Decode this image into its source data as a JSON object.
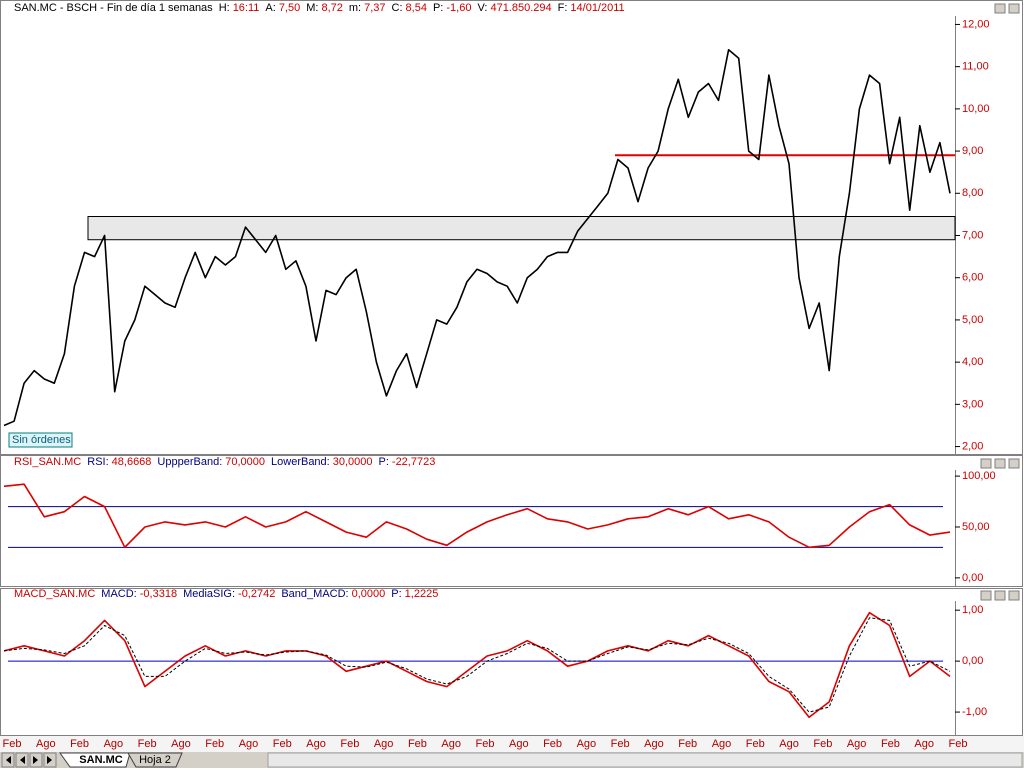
{
  "chart_data": [
    {
      "type": "line",
      "title": "SAN.MC - BSCH - Fin de día 1 semanas",
      "title_color": "#000000",
      "stats": [
        {
          "label": "H:",
          "value": "16:11"
        },
        {
          "label": "A:",
          "value": "7,50"
        },
        {
          "label": "M:",
          "value": "8,72"
        },
        {
          "label": "m:",
          "value": "7,37"
        },
        {
          "label": "C:",
          "value": "8,54"
        },
        {
          "label": "P:",
          "value": "-1,60"
        },
        {
          "label": "V:",
          "value": "471.850.294"
        },
        {
          "label": "F:",
          "value": "14/01/2011"
        }
      ],
      "color": "#000000",
      "values": [
        2.5,
        2.6,
        3.5,
        3.8,
        3.6,
        3.5,
        4.2,
        5.8,
        6.6,
        6.5,
        7.0,
        3.3,
        4.5,
        5.0,
        5.8,
        5.6,
        5.4,
        5.3,
        6.0,
        6.6,
        6.0,
        6.5,
        6.3,
        6.5,
        7.2,
        6.9,
        6.6,
        7.0,
        6.2,
        6.4,
        5.8,
        4.5,
        5.7,
        5.6,
        6.0,
        6.2,
        5.2,
        4.0,
        3.2,
        3.8,
        4.2,
        3.4,
        4.2,
        5.0,
        4.9,
        5.3,
        5.9,
        6.2,
        6.1,
        5.9,
        5.8,
        5.4,
        6.0,
        6.2,
        6.5,
        6.6,
        6.6,
        7.1,
        7.4,
        7.7,
        8.0,
        8.8,
        8.6,
        7.8,
        8.6,
        9.0,
        10.0,
        10.7,
        9.8,
        10.4,
        10.6,
        10.2,
        11.4,
        11.2,
        9.0,
        8.8,
        10.8,
        9.6,
        8.7,
        6.0,
        4.8,
        5.4,
        3.8,
        6.5,
        8.0,
        10.0,
        10.8,
        10.6,
        8.7,
        9.8,
        7.6,
        9.6,
        8.5,
        9.2,
        8.0
      ],
      "ylim": [
        1.8,
        12.2
      ],
      "yticks": [
        {
          "value": 2,
          "label": "2,00"
        },
        {
          "value": 3,
          "label": "3,00"
        },
        {
          "value": 4,
          "label": "4,00"
        },
        {
          "value": 5,
          "label": "5,00"
        },
        {
          "value": 6,
          "label": "6,00"
        },
        {
          "value": 7,
          "label": "7,00"
        },
        {
          "value": 8,
          "label": "8,00"
        },
        {
          "value": 9,
          "label": "9,00"
        },
        {
          "value": 10,
          "label": "10,00"
        },
        {
          "value": 11,
          "label": "11,00"
        },
        {
          "value": 12,
          "label": "12,00"
        }
      ],
      "hlines": [
        {
          "value": 8.9,
          "color": "#e00000"
        }
      ],
      "bands": [
        {
          "from": 6.9,
          "to": 7.45,
          "color": "#e8e8e8"
        }
      ],
      "annotation": "Sin órdenes"
    },
    {
      "type": "line",
      "title": "RSI_SAN.MC",
      "title_color": "#cc0000",
      "stats": [
        {
          "label": "RSI:",
          "value": "48,6668"
        },
        {
          "label": "UppperBand:",
          "value": "70,0000"
        },
        {
          "label": "LowerBand:",
          "value": "30,0000"
        },
        {
          "label": "P:",
          "value": "-22,7723"
        }
      ],
      "color": "#dd0000",
      "values": [
        90,
        92,
        60,
        65,
        80,
        70,
        30,
        50,
        55,
        52,
        55,
        50,
        60,
        50,
        55,
        65,
        55,
        45,
        40,
        55,
        48,
        38,
        32,
        45,
        55,
        62,
        68,
        58,
        55,
        48,
        52,
        58,
        60,
        68,
        62,
        70,
        58,
        62,
        55,
        40,
        30,
        32,
        50,
        65,
        72,
        52,
        42,
        45
      ],
      "ylim": [
        -8,
        106
      ],
      "yticks": [
        {
          "value": 0,
          "label": "0,00"
        },
        {
          "value": 50,
          "label": "50,00"
        },
        {
          "value": 100,
          "label": "100,00"
        }
      ],
      "hlines": [
        {
          "value": 70,
          "color": "#000080"
        },
        {
          "value": 30,
          "color": "#000080"
        }
      ]
    },
    {
      "type": "line",
      "title": "MACD_SAN.MC",
      "title_color": "#cc0000",
      "stats": [
        {
          "label": "MACD:",
          "value": "-0,3318"
        },
        {
          "label": "MediaSIG:",
          "value": "-0,2742"
        },
        {
          "label": "Band_MACD:",
          "value": "0,0000"
        },
        {
          "label": "P:",
          "value": "1,2225"
        }
      ],
      "series": [
        {
          "color": "#dd0000",
          "dashed": false,
          "values": [
            0.2,
            0.3,
            0.2,
            0.1,
            0.4,
            0.8,
            0.4,
            -0.5,
            -0.2,
            0.1,
            0.3,
            0.1,
            0.2,
            0.1,
            0.2,
            0.2,
            0.1,
            -0.2,
            -0.1,
            0.0,
            -0.2,
            -0.4,
            -0.5,
            -0.2,
            0.1,
            0.2,
            0.4,
            0.2,
            -0.1,
            0.0,
            0.2,
            0.3,
            0.2,
            0.4,
            0.3,
            0.5,
            0.3,
            0.1,
            -0.4,
            -0.6,
            -1.1,
            -0.8,
            0.3,
            0.95,
            0.7,
            -0.3,
            0.0,
            -0.3
          ]
        },
        {
          "color": "#000000",
          "dashed": true,
          "values": [
            0.2,
            0.25,
            0.22,
            0.15,
            0.3,
            0.7,
            0.5,
            -0.3,
            -0.3,
            0.0,
            0.25,
            0.15,
            0.18,
            0.12,
            0.18,
            0.2,
            0.12,
            -0.1,
            -0.12,
            -0.02,
            -0.15,
            -0.35,
            -0.45,
            -0.3,
            0.0,
            0.15,
            0.35,
            0.25,
            0.0,
            0.0,
            0.15,
            0.28,
            0.22,
            0.35,
            0.32,
            0.45,
            0.35,
            0.15,
            -0.3,
            -0.55,
            -1.0,
            -0.9,
            0.1,
            0.85,
            0.8,
            -0.1,
            0.0,
            -0.2
          ]
        }
      ],
      "ylim": [
        -1.45,
        1.18
      ],
      "yticks": [
        {
          "value": -1,
          "label": "-1,00"
        },
        {
          "value": 0,
          "label": "0,00"
        },
        {
          "value": 1,
          "label": "1,00"
        }
      ],
      "hlines": [
        {
          "value": 0,
          "color": "#0000cc"
        }
      ],
      "xtick_labels": [
        "Feb",
        "Ago",
        "Feb",
        "Ago",
        "Feb",
        "Ago",
        "Feb",
        "Ago",
        "Feb",
        "Ago",
        "Feb",
        "Ago",
        "Feb",
        "Ago",
        "Feb",
        "Ago",
        "Feb",
        "Ago",
        "Feb",
        "Ago",
        "Feb",
        "Ago",
        "Feb",
        "Ago",
        "Feb",
        "Ago",
        "Feb",
        "Ago",
        "Feb"
      ]
    }
  ],
  "tabs": [
    "SAN.MC",
    "Hoja 2"
  ]
}
